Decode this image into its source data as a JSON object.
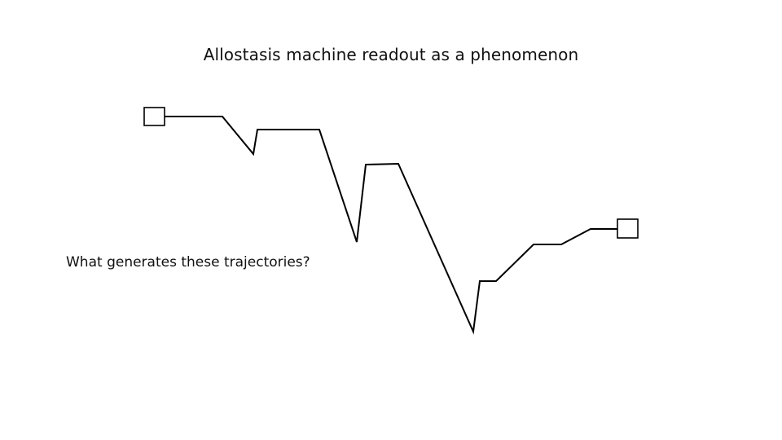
{
  "slide": {
    "title": "Allostasis machine readout as a phenomenon",
    "question": "What generates these trajectories?"
  },
  "diagram": {
    "line_color": "#000000",
    "start_marker": "square",
    "end_marker": "square"
  }
}
